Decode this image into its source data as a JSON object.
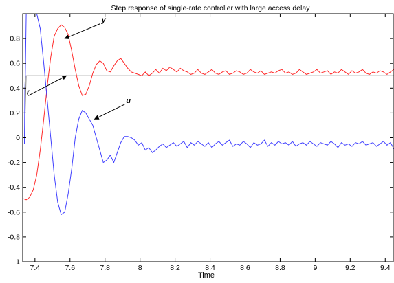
{
  "chart_data": {
    "type": "line",
    "title": "Step response of single-rate controller with large access delay",
    "xlabel": "Time",
    "ylabel": "",
    "xlim": [
      7.33,
      9.45
    ],
    "ylim": [
      -1.0,
      1.0
    ],
    "xticks": [
      7.4,
      7.6,
      7.8,
      8,
      8.2,
      8.4,
      8.6,
      8.8,
      9,
      9.2,
      9.4
    ],
    "xtick_labels": [
      "7.4",
      "7.6",
      "7.8",
      "8",
      "8.2",
      "8.4",
      "8.6",
      "8.8",
      "9",
      "9.2",
      "9.4"
    ],
    "yticks": [
      -1,
      -0.8,
      -0.6,
      -0.4,
      -0.2,
      0,
      0.2,
      0.4,
      0.6,
      0.8
    ],
    "ytick_labels": [
      "-1",
      "-0.8",
      "-0.6",
      "-0.4",
      "-0.2",
      "0",
      "0.2",
      "0.4",
      "0.6",
      "0.8"
    ],
    "grid": false,
    "series": [
      {
        "name": "r",
        "color": "#7f7f7f",
        "x": [
          7.33,
          7.34,
          7.35,
          9.45
        ],
        "y": [
          0.0,
          0.0,
          0.5,
          0.5
        ]
      },
      {
        "name": "y",
        "color": "#ff2a2a",
        "x": [
          7.33,
          7.35,
          7.37,
          7.39,
          7.41,
          7.43,
          7.45,
          7.47,
          7.49,
          7.51,
          7.53,
          7.55,
          7.57,
          7.59,
          7.61,
          7.63,
          7.65,
          7.67,
          7.69,
          7.71,
          7.73,
          7.75,
          7.77,
          7.79,
          7.81,
          7.83,
          7.85,
          7.87,
          7.89,
          7.91,
          7.93,
          7.95,
          7.97,
          7.99,
          8.01,
          8.03,
          8.05,
          8.07,
          8.09,
          8.11,
          8.13,
          8.15,
          8.17,
          8.19,
          8.21,
          8.23,
          8.25,
          8.27,
          8.29,
          8.31,
          8.33,
          8.35,
          8.37,
          8.39,
          8.41,
          8.43,
          8.45,
          8.47,
          8.49,
          8.51,
          8.53,
          8.55,
          8.57,
          8.59,
          8.61,
          8.63,
          8.65,
          8.67,
          8.69,
          8.71,
          8.73,
          8.75,
          8.77,
          8.79,
          8.81,
          8.83,
          8.85,
          8.87,
          8.89,
          8.91,
          8.93,
          8.95,
          8.97,
          8.99,
          9.01,
          9.03,
          9.05,
          9.07,
          9.09,
          9.11,
          9.13,
          9.15,
          9.17,
          9.19,
          9.21,
          9.23,
          9.25,
          9.27,
          9.29,
          9.31,
          9.33,
          9.35,
          9.37,
          9.39,
          9.41,
          9.43,
          9.45
        ],
        "y": [
          -0.49,
          -0.5,
          -0.48,
          -0.42,
          -0.3,
          -0.1,
          0.15,
          0.42,
          0.65,
          0.82,
          0.88,
          0.91,
          0.89,
          0.83,
          0.7,
          0.55,
          0.42,
          0.34,
          0.35,
          0.42,
          0.52,
          0.59,
          0.62,
          0.6,
          0.54,
          0.53,
          0.58,
          0.62,
          0.64,
          0.6,
          0.56,
          0.53,
          0.52,
          0.51,
          0.5,
          0.53,
          0.5,
          0.52,
          0.55,
          0.52,
          0.56,
          0.54,
          0.57,
          0.55,
          0.53,
          0.56,
          0.54,
          0.53,
          0.51,
          0.52,
          0.55,
          0.52,
          0.51,
          0.53,
          0.55,
          0.52,
          0.51,
          0.53,
          0.54,
          0.51,
          0.52,
          0.54,
          0.53,
          0.51,
          0.52,
          0.55,
          0.53,
          0.52,
          0.54,
          0.51,
          0.52,
          0.53,
          0.52,
          0.54,
          0.55,
          0.52,
          0.53,
          0.51,
          0.52,
          0.55,
          0.53,
          0.51,
          0.52,
          0.53,
          0.55,
          0.52,
          0.53,
          0.54,
          0.51,
          0.53,
          0.52,
          0.55,
          0.53,
          0.51,
          0.54,
          0.52,
          0.53,
          0.55,
          0.52,
          0.51,
          0.53,
          0.52,
          0.54,
          0.53,
          0.51,
          0.53,
          0.55
        ]
      },
      {
        "name": "u",
        "color": "#3f3fff",
        "x": [
          7.33,
          7.335,
          7.34,
          7.342,
          7.345,
          7.35,
          7.36,
          7.37,
          7.38,
          7.39,
          7.41,
          7.43,
          7.45,
          7.47,
          7.49,
          7.51,
          7.53,
          7.55,
          7.57,
          7.59,
          7.61,
          7.63,
          7.65,
          7.67,
          7.69,
          7.71,
          7.73,
          7.75,
          7.77,
          7.79,
          7.81,
          7.83,
          7.85,
          7.87,
          7.89,
          7.91,
          7.93,
          7.95,
          7.97,
          7.99,
          8.01,
          8.03,
          8.05,
          8.07,
          8.09,
          8.11,
          8.13,
          8.15,
          8.17,
          8.19,
          8.21,
          8.23,
          8.25,
          8.27,
          8.29,
          8.31,
          8.33,
          8.35,
          8.37,
          8.39,
          8.41,
          8.43,
          8.45,
          8.47,
          8.49,
          8.51,
          8.53,
          8.55,
          8.57,
          8.59,
          8.61,
          8.63,
          8.65,
          8.67,
          8.69,
          8.71,
          8.73,
          8.75,
          8.77,
          8.79,
          8.81,
          8.83,
          8.85,
          8.87,
          8.89,
          8.91,
          8.93,
          8.95,
          8.97,
          8.99,
          9.01,
          9.03,
          9.05,
          9.07,
          9.09,
          9.11,
          9.13,
          9.15,
          9.17,
          9.19,
          9.21,
          9.23,
          9.25,
          9.27,
          9.29,
          9.31,
          9.33,
          9.35,
          9.37,
          9.39,
          9.41,
          9.43,
          9.45
        ],
        "y": [
          -0.05,
          -0.05,
          -0.05,
          0.4,
          0.5,
          1.0,
          1.0,
          1.0,
          1.0,
          1.0,
          1.0,
          0.88,
          0.6,
          0.3,
          0.0,
          -0.3,
          -0.52,
          -0.62,
          -0.6,
          -0.45,
          -0.25,
          0.0,
          0.15,
          0.22,
          0.2,
          0.15,
          0.1,
          0.0,
          -0.1,
          -0.2,
          -0.18,
          -0.14,
          -0.2,
          -0.12,
          -0.04,
          0.01,
          0.01,
          0.0,
          -0.02,
          -0.06,
          -0.04,
          -0.1,
          -0.08,
          -0.12,
          -0.1,
          -0.07,
          -0.05,
          -0.08,
          -0.06,
          -0.04,
          -0.07,
          -0.05,
          -0.03,
          -0.08,
          -0.04,
          -0.06,
          -0.03,
          -0.05,
          -0.07,
          -0.04,
          -0.08,
          -0.05,
          -0.03,
          -0.06,
          -0.04,
          -0.02,
          -0.07,
          -0.05,
          -0.06,
          -0.03,
          -0.05,
          -0.08,
          -0.04,
          -0.06,
          -0.05,
          -0.02,
          -0.07,
          -0.04,
          -0.06,
          -0.03,
          -0.05,
          -0.04,
          -0.06,
          -0.03,
          -0.07,
          -0.05,
          -0.04,
          -0.06,
          -0.03,
          -0.05,
          -0.07,
          -0.04,
          -0.05,
          -0.06,
          -0.03,
          -0.05,
          -0.08,
          -0.04,
          -0.06,
          -0.05,
          -0.07,
          -0.04,
          -0.05,
          -0.03,
          -0.06,
          -0.05,
          -0.04,
          -0.07,
          -0.05,
          -0.03,
          -0.06,
          -0.04,
          -0.09
        ]
      }
    ],
    "annotations": [
      {
        "text": "y",
        "target_x": 7.57,
        "target_y": 0.8,
        "label_x": 7.78,
        "label_y": 0.93
      },
      {
        "text": "r",
        "target_x": 7.58,
        "target_y": 0.5,
        "label_x": 7.37,
        "label_y": 0.35
      },
      {
        "text": "u",
        "target_x": 7.74,
        "target_y": 0.15,
        "label_x": 7.92,
        "label_y": 0.28
      }
    ]
  }
}
